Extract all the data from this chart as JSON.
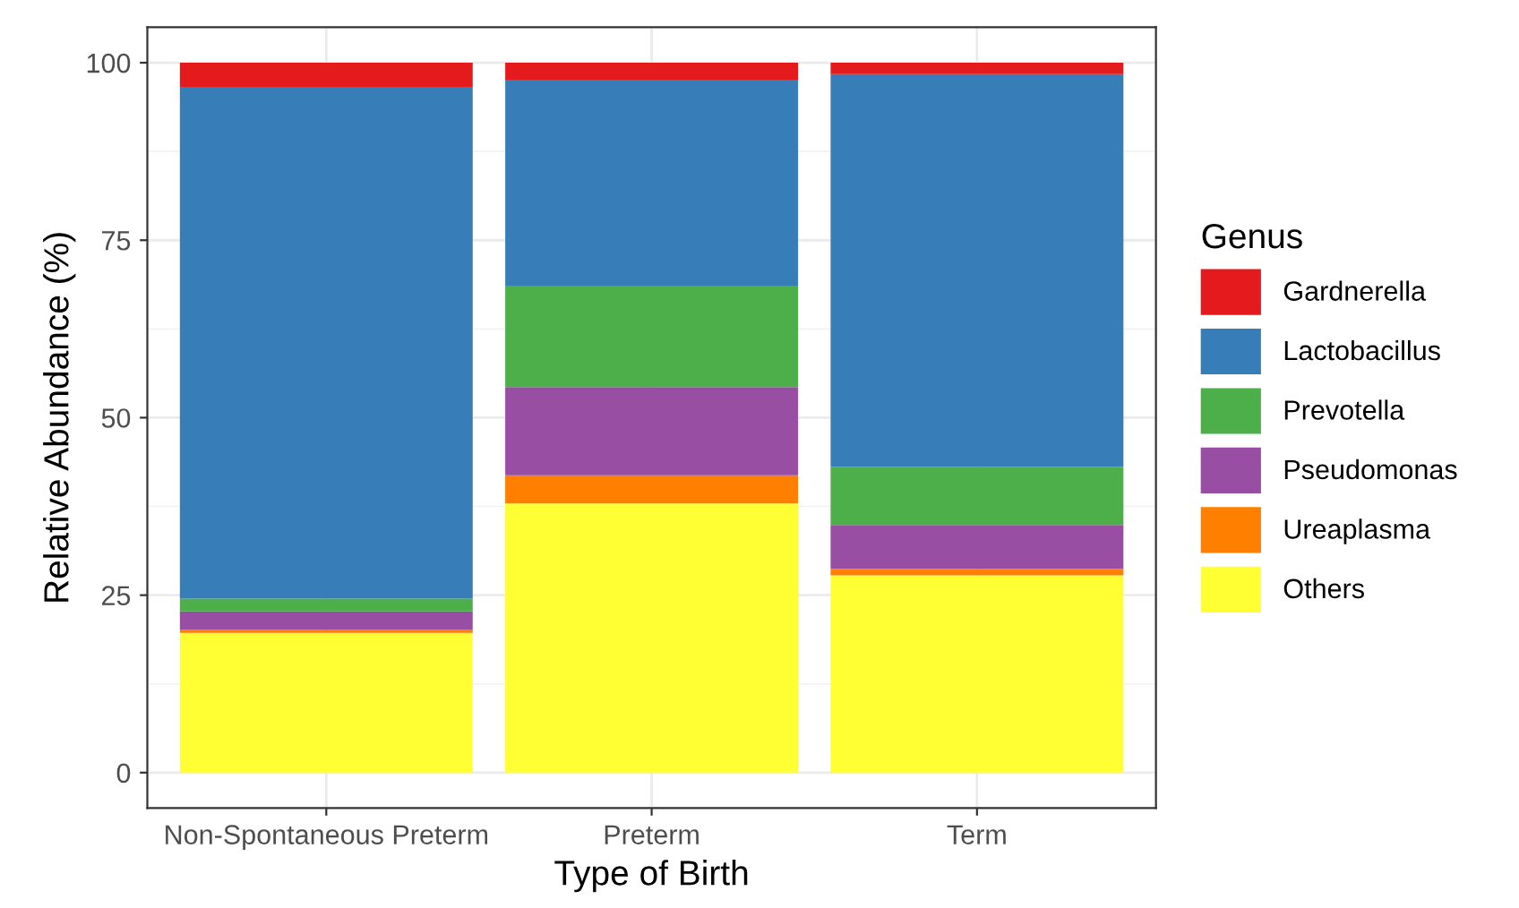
{
  "chart_data": {
    "type": "bar",
    "stacked": true,
    "xlabel": "Type of Birth",
    "ylabel": "Relative Abundance (%)",
    "legend_title": "Genus",
    "legend": "right",
    "grid": true,
    "categories": [
      "Non-Spontaneous Preterm",
      "Preterm",
      "Term"
    ],
    "ylim": [
      -5,
      105
    ],
    "yticks": [
      0,
      25,
      50,
      75,
      100
    ],
    "series": [
      {
        "name": "Others",
        "color": "#ffff33",
        "values": [
          19.7,
          37.9,
          27.8
        ]
      },
      {
        "name": "Ureaplasma",
        "color": "#ff7f00",
        "values": [
          0.4,
          4.0,
          0.9
        ]
      },
      {
        "name": "Pseudomonas",
        "color": "#984ea3",
        "values": [
          2.6,
          12.4,
          6.2
        ]
      },
      {
        "name": "Prevotella",
        "color": "#4daf4a",
        "values": [
          1.8,
          14.3,
          8.2
        ]
      },
      {
        "name": "Lactobacillus",
        "color": "#377eb8",
        "values": [
          72.1,
          29.0,
          55.3
        ]
      },
      {
        "name": "Gardnerella",
        "color": "#e41a1c",
        "values": [
          3.4,
          2.4,
          1.6
        ]
      }
    ]
  }
}
